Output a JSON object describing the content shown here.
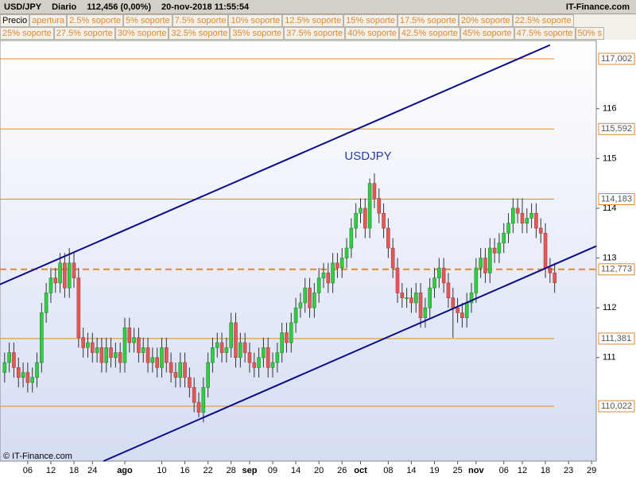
{
  "header": {
    "symbol": "USD/JPY",
    "period": "Diario",
    "price": "112,456 (0,00%)",
    "datetime": "20-nov-2018 11:55:54",
    "brand": "IT-Finance.com"
  },
  "legend": [
    [
      "Precio",
      "apertura",
      "2.5% soporte",
      "5% soporte",
      "7.5% soporte",
      "10% soporte",
      "12.5% soporte",
      "15% soporte",
      "17.5% soporte",
      "20% soporte",
      "22.5% soporte"
    ],
    [
      "25% soporte",
      "27.5% soporte",
      "30% soporte",
      "32.5% soporte",
      "35% soporte",
      "37.5% soporte",
      "40% soporte",
      "42.5% soporte",
      "45% soporte",
      "47.5% soporte",
      "50% s"
    ]
  ],
  "watermark": "© IT-Finance.com",
  "chart_data": {
    "type": "candlestick",
    "annotation": "USDJPY",
    "up_color": "#33cc44",
    "down_color": "#e05a5a",
    "level_color": "#e08a30",
    "trend_color": "#0a0a8c",
    "xlim": [
      -1,
      128
    ],
    "ylim": [
      108.92,
      117.37
    ],
    "yticks": [
      111,
      112,
      113,
      114,
      115,
      116
    ],
    "xticks": [
      {
        "value": 5,
        "label": "06"
      },
      {
        "value": 10,
        "label": "12"
      },
      {
        "value": 15,
        "label": "18"
      },
      {
        "value": 19,
        "label": "24"
      },
      {
        "value": 26,
        "label": "ago"
      },
      {
        "value": 34,
        "label": "10"
      },
      {
        "value": 39,
        "label": "16"
      },
      {
        "value": 44,
        "label": "22"
      },
      {
        "value": 49,
        "label": "28"
      },
      {
        "value": 53,
        "label": "sep"
      },
      {
        "value": 58,
        "label": "09"
      },
      {
        "value": 63,
        "label": "14"
      },
      {
        "value": 68,
        "label": "20"
      },
      {
        "value": 73,
        "label": "26"
      },
      {
        "value": 77,
        "label": "oct"
      },
      {
        "value": 83,
        "label": "08"
      },
      {
        "value": 88,
        "label": "14"
      },
      {
        "value": 93,
        "label": "19"
      },
      {
        "value": 98,
        "label": "25"
      },
      {
        "value": 102,
        "label": "nov"
      },
      {
        "value": 108,
        "label": "06"
      },
      {
        "value": 112,
        "label": "12"
      },
      {
        "value": 117,
        "label": "18"
      },
      {
        "value": 122,
        "label": "23"
      },
      {
        "value": 127,
        "label": "29"
      }
    ],
    "levels": [
      {
        "value": 117.002,
        "label": "117,002"
      },
      {
        "value": 115.592,
        "label": "115,592"
      },
      {
        "value": 114.183,
        "label": "114,183"
      },
      {
        "value": 112.773,
        "label": "112,773",
        "dashed": true
      },
      {
        "value": 111.381,
        "label": "111,381"
      },
      {
        "value": 110.022,
        "label": "110,022"
      }
    ],
    "trendlines": [
      {
        "x": [
          -1,
          118
        ],
        "y": [
          112.47,
          117.28
        ]
      },
      {
        "x": [
          21.4,
          128
        ],
        "y": [
          108.92,
          113.24
        ]
      }
    ],
    "open": [
      110.7,
      110.9,
      111.1,
      110.8,
      110.6,
      110.7,
      110.5,
      110.6,
      110.9,
      111.9,
      112.3,
      112.6,
      112.5,
      112.9,
      112.4,
      112.9,
      112.6,
      111.4,
      111.2,
      111.3,
      111.1,
      111.2,
      110.9,
      111.2,
      111.0,
      111.1,
      110.9,
      111.6,
      111.3,
      111.4,
      111.1,
      111.2,
      110.9,
      111.0,
      110.8,
      111.2,
      110.9,
      110.7,
      110.6,
      110.9,
      110.6,
      110.4,
      110.1,
      109.9,
      110.4,
      110.9,
      111.2,
      111.3,
      111.1,
      111.2,
      111.7,
      111.0,
      111.3,
      111.1,
      110.9,
      110.8,
      111.0,
      111.2,
      110.8,
      110.9,
      111.1,
      111.5,
      111.3,
      111.7,
      112.0,
      112.1,
      112.4,
      112.0,
      112.3,
      112.6,
      112.7,
      112.5,
      112.9,
      112.8,
      113.0,
      113.2,
      113.6,
      113.9,
      114.0,
      113.6,
      114.5,
      114.2,
      113.9,
      113.6,
      113.2,
      112.8,
      112.3,
      112.2,
      112.2,
      112.1,
      112.3,
      111.8,
      112.0,
      112.4,
      112.6,
      112.8,
      112.5,
      112.2,
      112.0,
      111.9,
      111.8,
      112.1,
      112.3,
      112.8,
      113.0,
      112.7,
      113.2,
      113.1,
      113.3,
      113.5,
      113.7,
      114.0,
      113.9,
      113.7,
      113.8,
      113.9,
      113.6,
      113.5,
      112.8,
      112.7
    ],
    "high": [
      111.1,
      111.3,
      111.3,
      111.0,
      110.9,
      110.9,
      110.8,
      111.1,
      112.1,
      112.5,
      112.8,
      112.8,
      113.1,
      113.1,
      113.2,
      113.1,
      112.8,
      111.6,
      111.5,
      111.5,
      111.4,
      111.4,
      111.4,
      111.4,
      111.3,
      111.3,
      111.8,
      111.8,
      111.6,
      111.6,
      111.4,
      111.4,
      111.2,
      111.2,
      111.4,
      111.4,
      111.1,
      110.9,
      111.1,
      111.1,
      110.8,
      110.6,
      110.3,
      110.6,
      111.1,
      111.4,
      111.5,
      111.5,
      111.4,
      111.9,
      111.9,
      111.5,
      111.5,
      111.3,
      111.1,
      111.2,
      111.4,
      111.4,
      111.1,
      111.3,
      111.7,
      111.7,
      111.9,
      112.2,
      112.3,
      112.6,
      112.6,
      112.5,
      112.8,
      112.9,
      112.9,
      113.1,
      113.1,
      113.2,
      113.4,
      113.8,
      114.1,
      114.2,
      114.2,
      114.6,
      114.7,
      114.4,
      114.1,
      113.8,
      113.4,
      113.0,
      112.5,
      112.4,
      112.4,
      112.5,
      112.5,
      112.2,
      112.6,
      112.8,
      113.0,
      113.0,
      112.7,
      112.4,
      112.2,
      112.1,
      112.3,
      112.5,
      113.0,
      113.2,
      113.2,
      113.4,
      113.4,
      113.5,
      113.7,
      113.9,
      114.2,
      114.2,
      114.2,
      114.0,
      114.1,
      114.1,
      113.8,
      113.7,
      113.0,
      112.9
    ],
    "low": [
      110.5,
      110.7,
      110.6,
      110.4,
      110.4,
      110.3,
      110.3,
      110.4,
      110.7,
      111.7,
      112.1,
      112.3,
      112.3,
      112.2,
      112.2,
      112.4,
      111.2,
      111.0,
      111.0,
      110.9,
      110.9,
      110.7,
      110.7,
      110.8,
      110.8,
      110.7,
      110.7,
      111.1,
      111.1,
      110.9,
      110.9,
      110.7,
      110.7,
      110.6,
      110.6,
      110.7,
      110.5,
      110.4,
      110.4,
      110.4,
      110.2,
      109.9,
      109.8,
      109.7,
      110.2,
      110.7,
      111.0,
      110.9,
      110.9,
      111.0,
      110.8,
      110.8,
      110.9,
      110.7,
      110.6,
      110.6,
      110.8,
      110.6,
      110.6,
      110.7,
      110.9,
      111.1,
      111.1,
      111.5,
      111.8,
      111.9,
      111.8,
      111.8,
      112.1,
      112.4,
      112.3,
      112.3,
      112.6,
      112.6,
      112.8,
      113.0,
      113.4,
      113.7,
      113.4,
      113.4,
      114.0,
      113.7,
      113.4,
      113.0,
      112.6,
      112.1,
      112.0,
      112.0,
      111.9,
      111.9,
      111.6,
      111.6,
      111.8,
      112.2,
      112.4,
      112.3,
      112.0,
      111.4,
      111.7,
      111.6,
      111.6,
      111.9,
      112.1,
      112.6,
      112.5,
      112.5,
      112.9,
      112.9,
      113.1,
      113.3,
      113.5,
      113.7,
      113.5,
      113.5,
      113.6,
      113.4,
      113.3,
      112.6,
      112.5,
      112.3
    ],
    "close": [
      110.9,
      111.1,
      110.8,
      110.6,
      110.7,
      110.5,
      110.6,
      110.9,
      111.9,
      112.3,
      112.6,
      112.5,
      112.9,
      112.4,
      112.9,
      112.6,
      111.4,
      111.2,
      111.3,
      111.1,
      111.2,
      110.9,
      111.2,
      111.0,
      111.1,
      110.9,
      111.6,
      111.3,
      111.4,
      111.1,
      111.2,
      110.9,
      111.0,
      110.8,
      111.2,
      110.9,
      110.7,
      110.6,
      110.9,
      110.6,
      110.4,
      110.1,
      109.9,
      110.4,
      110.9,
      111.2,
      111.3,
      111.1,
      111.2,
      111.7,
      111.0,
      111.3,
      111.1,
      110.9,
      110.8,
      111.0,
      111.2,
      110.8,
      110.9,
      111.1,
      111.5,
      111.3,
      111.7,
      112.0,
      112.1,
      112.4,
      112.0,
      112.3,
      112.6,
      112.7,
      112.5,
      112.9,
      112.8,
      113.0,
      113.2,
      113.6,
      113.9,
      114.0,
      113.6,
      114.5,
      114.2,
      113.9,
      113.6,
      113.2,
      112.8,
      112.3,
      112.2,
      112.2,
      112.1,
      112.3,
      111.8,
      112.0,
      112.4,
      112.6,
      112.8,
      112.5,
      112.2,
      112.0,
      111.9,
      111.8,
      112.1,
      112.3,
      112.8,
      113.0,
      112.7,
      113.2,
      113.1,
      113.3,
      113.5,
      113.7,
      114.0,
      113.9,
      113.7,
      113.8,
      113.9,
      113.6,
      113.5,
      112.8,
      112.7,
      112.5
    ]
  }
}
